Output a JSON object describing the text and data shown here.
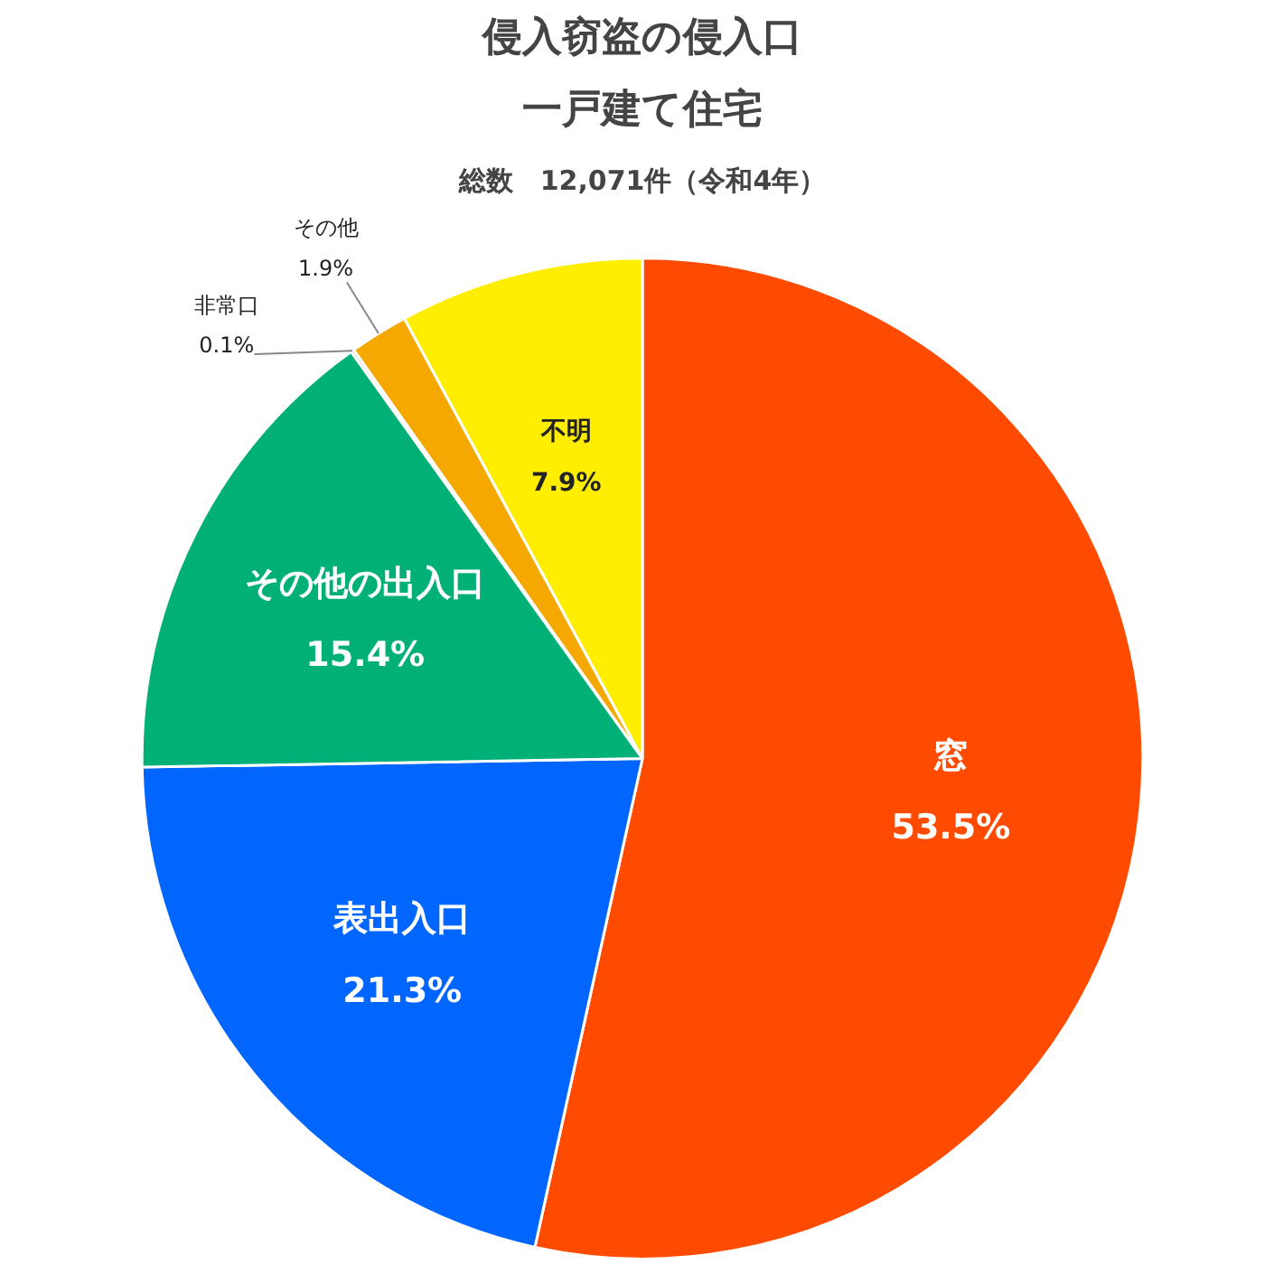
{
  "chart_data": {
    "type": "pie",
    "title": "侵入窃盗の侵入口",
    "subtitle": "一戸建て住宅",
    "annotations": [
      "総数　12,071件（令和4年）"
    ],
    "categories": [
      "窓",
      "表出入口",
      "その他の出入口",
      "非常口",
      "その他",
      "不明"
    ],
    "values": [
      53.5,
      21.3,
      15.4,
      0.1,
      1.9,
      7.9
    ],
    "value_labels": [
      "53.5%",
      "21.3%",
      "15.4%",
      "0.1%",
      "1.9%",
      "7.9%"
    ],
    "colors": [
      "#ff4b00",
      "#0066ff",
      "#00b076",
      "#a0a0a0",
      "#f5a800",
      "#ffee00"
    ]
  }
}
